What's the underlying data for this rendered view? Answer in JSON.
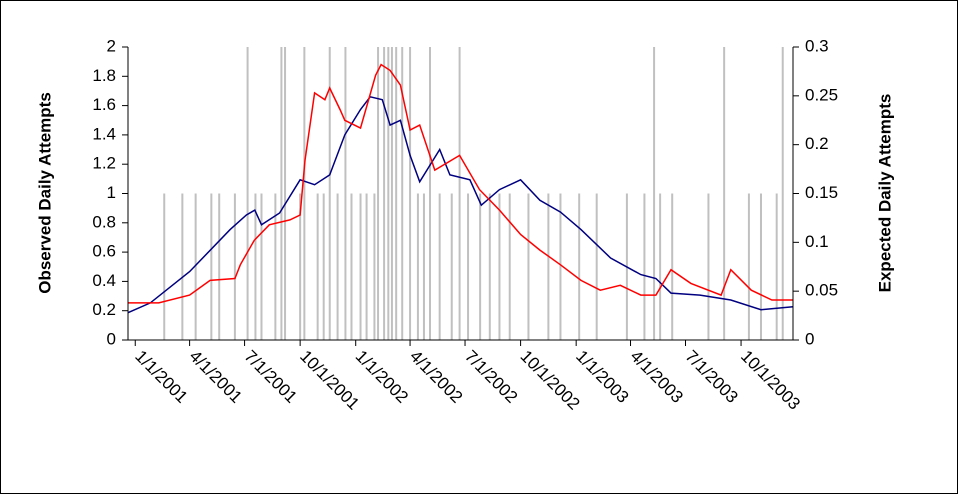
{
  "chart_data": {
    "type": "line",
    "y_label": "Observed Daily Attempts",
    "y2_label": "Expected Daily Attempts",
    "xlim": [
      "2000-12-20",
      "2003-12-26"
    ],
    "xticks": [
      {
        "value": "2001-01-01",
        "label": "1/1/2001"
      },
      {
        "value": "2001-04-01",
        "label": "4/1/2001"
      },
      {
        "value": "2001-07-01",
        "label": "7/1/2001"
      },
      {
        "value": "2001-10-01",
        "label": "10/1/2001"
      },
      {
        "value": "2002-01-01",
        "label": "1/1/2002"
      },
      {
        "value": "2002-04-01",
        "label": "4/1/2002"
      },
      {
        "value": "2002-07-01",
        "label": "7/1/2002"
      },
      {
        "value": "2002-10-01",
        "label": "10/1/2002"
      },
      {
        "value": "2003-01-01",
        "label": "1/1/2003"
      },
      {
        "value": "2003-04-01",
        "label": "4/1/2003"
      },
      {
        "value": "2003-07-01",
        "label": "7/1/2003"
      },
      {
        "value": "2003-10-01",
        "label": "10/1/2003"
      }
    ],
    "ylim": [
      0,
      2
    ],
    "yticks": [
      0,
      0.2,
      0.4,
      0.6,
      0.8,
      1,
      1.2,
      1.4,
      1.6,
      1.8,
      2
    ],
    "y2lim": [
      0,
      0.3
    ],
    "y2ticks": [
      0,
      0.05,
      0.1,
      0.15,
      0.2,
      0.25,
      0.3
    ],
    "series": [
      {
        "type": "bar",
        "color": "#c0c0c0",
        "x": [
          "2001-02-18",
          "2001-03-20",
          "2001-04-11",
          "2001-05-07",
          "2001-05-20",
          "2001-06-15",
          "2001-07-06",
          "2001-07-19",
          "2001-07-29",
          "2001-08-21",
          "2001-08-31",
          "2001-09-06",
          "2001-10-01",
          "2001-10-08",
          "2001-10-30",
          "2001-11-09",
          "2001-11-19",
          "2001-12-02",
          "2001-12-15",
          "2001-12-25",
          "2002-01-09",
          "2002-01-19",
          "2002-02-01",
          "2002-02-07",
          "2002-02-17",
          "2002-02-24",
          "2002-03-02",
          "2002-03-09",
          "2002-03-19",
          "2002-04-01",
          "2002-04-14",
          "2002-04-24",
          "2002-05-04",
          "2002-05-20",
          "2002-06-09",
          "2002-06-22",
          "2002-07-06",
          "2002-07-26",
          "2002-08-11",
          "2002-08-27",
          "2002-09-13",
          "2002-10-14",
          "2002-11-16",
          "2002-12-06",
          "2003-01-06",
          "2003-02-04",
          "2003-03-26",
          "2003-04-24",
          "2003-05-10",
          "2003-05-20",
          "2003-06-09",
          "2003-08-08",
          "2003-09-03",
          "2003-10-14",
          "2003-11-03",
          "2003-11-29",
          "2003-12-09"
        ],
        "values": [
          1,
          1,
          1,
          1,
          1,
          1,
          2,
          1,
          1,
          1,
          2,
          2,
          1,
          2,
          1,
          1,
          2,
          1,
          2,
          1,
          1,
          1,
          1,
          2,
          2,
          2,
          2,
          2,
          2,
          2,
          1,
          1,
          2,
          1,
          1,
          2,
          1,
          1,
          1,
          1,
          1,
          1,
          1,
          1,
          1,
          1,
          1,
          1,
          2,
          1,
          1,
          1,
          2,
          1,
          1,
          1,
          2
        ]
      },
      {
        "color": "#000080",
        "axis": "y2",
        "x": [
          "2000-12-20",
          "2001-01-26",
          "2001-04-01",
          "2001-06-07",
          "2001-07-04",
          "2001-07-18",
          "2001-07-29",
          "2001-08-28",
          "2001-10-01",
          "2001-10-25",
          "2001-11-19",
          "2001-12-14",
          "2002-01-09",
          "2002-01-25",
          "2002-02-14",
          "2002-02-27",
          "2002-03-16",
          "2002-04-01",
          "2002-04-17",
          "2002-05-20",
          "2002-06-06",
          "2002-07-09",
          "2002-07-28",
          "2002-08-27",
          "2002-10-01",
          "2002-11-02",
          "2002-12-06",
          "2003-01-09",
          "2003-02-27",
          "2003-04-18",
          "2003-05-13",
          "2003-06-07",
          "2003-07-25",
          "2003-09-14",
          "2003-11-03",
          "2003-12-26"
        ],
        "values": [
          0.028,
          0.038,
          0.07,
          0.113,
          0.128,
          0.133,
          0.118,
          0.13,
          0.164,
          0.159,
          0.169,
          0.21,
          0.236,
          0.249,
          0.246,
          0.22,
          0.225,
          0.189,
          0.162,
          0.195,
          0.169,
          0.164,
          0.138,
          0.154,
          0.164,
          0.143,
          0.131,
          0.113,
          0.084,
          0.067,
          0.063,
          0.048,
          0.046,
          0.041,
          0.031,
          0.034
        ]
      },
      {
        "color": "#ff0000",
        "axis": "y2",
        "x": [
          "2000-12-20",
          "2001-02-09",
          "2001-04-01",
          "2001-05-05",
          "2001-06-15",
          "2001-06-24",
          "2001-07-17",
          "2001-08-11",
          "2001-09-14",
          "2001-10-01",
          "2001-10-09",
          "2001-10-25",
          "2001-11-11",
          "2001-11-19",
          "2001-12-06",
          "2001-12-14",
          "2002-01-09",
          "2002-02-03",
          "2002-02-12",
          "2002-02-27",
          "2002-03-16",
          "2002-04-01",
          "2002-04-17",
          "2002-05-12",
          "2002-06-22",
          "2002-07-25",
          "2002-08-27",
          "2002-10-01",
          "2002-11-02",
          "2002-12-06",
          "2003-01-09",
          "2003-02-10",
          "2003-03-15",
          "2003-04-18",
          "2003-05-13",
          "2003-06-07",
          "2003-07-10",
          "2003-08-29",
          "2003-09-14",
          "2003-10-18",
          "2003-11-21",
          "2003-12-26"
        ],
        "values": [
          0.038,
          0.038,
          0.046,
          0.061,
          0.063,
          0.077,
          0.102,
          0.118,
          0.123,
          0.128,
          0.184,
          0.253,
          0.246,
          0.258,
          0.236,
          0.225,
          0.217,
          0.271,
          0.282,
          0.276,
          0.261,
          0.215,
          0.22,
          0.174,
          0.189,
          0.154,
          0.133,
          0.108,
          0.092,
          0.077,
          0.061,
          0.051,
          0.056,
          0.046,
          0.046,
          0.072,
          0.058,
          0.046,
          0.072,
          0.051,
          0.041,
          0.041
        ]
      }
    ]
  }
}
